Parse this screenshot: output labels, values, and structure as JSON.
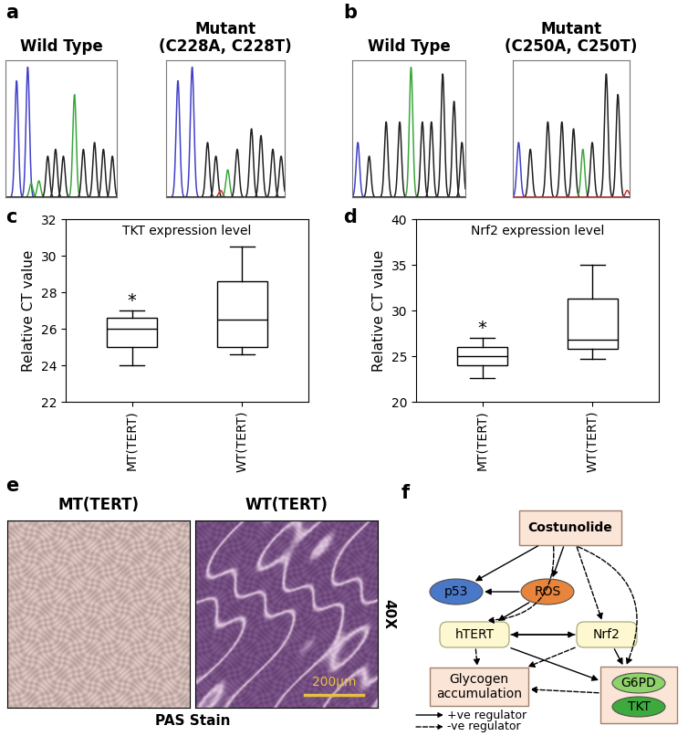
{
  "chart_data": [
    {
      "type": "box",
      "panel": "c",
      "title": "TKT expression level",
      "y_label": "Relative CT value",
      "categories": [
        "MT(TERT)",
        "WT(TERT)"
      ],
      "boxes": [
        {
          "whislo": 24,
          "q1": 25,
          "med": 26,
          "q3": 26.6,
          "whishi": 27
        },
        {
          "whislo": 24.6,
          "q1": 25,
          "med": 26.5,
          "q3": 28.6,
          "whishi": 30.5
        }
      ],
      "annotations": [
        {
          "category": 0,
          "text": "*"
        }
      ],
      "ylim": [
        22,
        32
      ],
      "yticks": [
        22,
        24,
        26,
        28,
        30,
        32
      ]
    },
    {
      "type": "box",
      "panel": "d",
      "title": "Nrf2 expression level",
      "y_label": "Relative CT value",
      "categories": [
        "MT(TERT)",
        "WT(TERT)"
      ],
      "boxes": [
        {
          "whislo": 22.6,
          "q1": 24,
          "med": 25,
          "q3": 26,
          "whishi": 27
        },
        {
          "whislo": 24.7,
          "q1": 25.8,
          "med": 26.8,
          "q3": 31.3,
          "whishi": 35
        }
      ],
      "annotations": [
        {
          "category": 0,
          "text": "*"
        }
      ],
      "ylim": [
        20,
        40
      ],
      "yticks": [
        20,
        25,
        30,
        35,
        40
      ]
    }
  ],
  "chromatograms": [
    {
      "panel": "a",
      "xlim": [
        0,
        1
      ],
      "ylim": [
        0,
        1
      ],
      "traces": [
        {
          "title": "Wild Type",
          "peaks": {
            "x": [
              0.1,
              0.2,
              0.23,
              0.3,
              0.38,
              0.45,
              0.52,
              0.62,
              0.7,
              0.8,
              0.88,
              0.96
            ],
            "height": [
              0.85,
              0.95,
              0.1,
              0.12,
              0.3,
              0.35,
              0.3,
              0.75,
              0.35,
              0.4,
              0.35,
              0.3
            ],
            "colors": [
              "#4040c8",
              "#4040c8",
              "#3aa63a",
              "#3aa63a",
              "#202020",
              "#202020",
              "#202020",
              "#3aa63a",
              "#202020",
              "#202020",
              "#202020",
              "#202020"
            ]
          }
        },
        {
          "title": "Mutant\n(C228A, C228T)",
          "peaks": {
            "x": [
              0.1,
              0.22,
              0.35,
              0.42,
              0.46,
              0.52,
              0.6,
              0.72,
              0.8,
              0.9,
              0.97
            ],
            "height": [
              0.85,
              0.95,
              0.4,
              0.3,
              0.05,
              0.2,
              0.35,
              0.5,
              0.45,
              0.35,
              0.3
            ],
            "colors": [
              "#4040c8",
              "#4040c8",
              "#202020",
              "#202020",
              "#d03030",
              "#3aa63a",
              "#202020",
              "#202020",
              "#202020",
              "#202020",
              "#202020"
            ]
          }
        }
      ]
    },
    {
      "panel": "b",
      "xlim": [
        0,
        1
      ],
      "ylim": [
        0,
        1
      ],
      "traces": [
        {
          "title": "Wild Type",
          "peaks": {
            "x": [
              0.05,
              0.15,
              0.3,
              0.42,
              0.52,
              0.62,
              0.7,
              0.8,
              0.9,
              0.97
            ],
            "height": [
              0.4,
              0.3,
              0.55,
              0.55,
              0.95,
              0.55,
              0.55,
              0.9,
              0.7,
              0.4
            ],
            "colors": [
              "#4040c8",
              "#202020",
              "#202020",
              "#202020",
              "#3aa63a",
              "#202020",
              "#202020",
              "#202020",
              "#202020",
              "#202020"
            ]
          }
        },
        {
          "title": "Mutant\n(C250A, C250T)",
          "peaks": {
            "x": [
              0.05,
              0.15,
              0.3,
              0.42,
              0.52,
              0.6,
              0.68,
              0.8,
              0.9,
              0.98
            ],
            "height": [
              0.4,
              0.35,
              0.55,
              0.55,
              0.5,
              0.35,
              0.4,
              0.9,
              0.75,
              0.05
            ],
            "colors": [
              "#4040c8",
              "#202020",
              "#202020",
              "#202020",
              "#202020",
              "#3aa63a",
              "#202020",
              "#202020",
              "#202020",
              "#d03030"
            ]
          }
        }
      ]
    }
  ],
  "micrographs": {
    "panel": "e",
    "images": [
      {
        "title": "MT(TERT)"
      },
      {
        "title": "WT(TERT)"
      }
    ],
    "magnification": "40X",
    "stain": "PAS Stain",
    "scale_bar": "200μm",
    "scale_bar_color": "#e8c040"
  },
  "diagram": {
    "panel": "f",
    "nodes": [
      {
        "label": "Costunolide",
        "color": "#fbe5d6"
      },
      {
        "label": "p53",
        "color": "#4a78c8"
      },
      {
        "label": "ROS",
        "color": "#e8843c"
      },
      {
        "label": "hTERT",
        "color": "#fdf8d0"
      },
      {
        "label": "Nrf2",
        "color": "#fdf8d0"
      },
      {
        "label": "Glycogen\naccumulation",
        "color": "#fbe5d6"
      },
      {
        "label": "G6PD",
        "color": "#8fd16a"
      },
      {
        "label": "TKT",
        "color": "#3daa3d"
      }
    ],
    "group_color": "#fbe5d6",
    "edges": [
      {
        "from": 0,
        "to": 1,
        "key": 0
      },
      {
        "from": 0,
        "to": 2,
        "key": 0
      },
      {
        "from": 0,
        "to": 3,
        "key": 1
      },
      {
        "from": 0,
        "to": 4,
        "key": 1
      },
      {
        "from": 0,
        "to": 6,
        "key": 1
      },
      {
        "from": 2,
        "to": 1,
        "key": 0
      },
      {
        "from": 2,
        "to": 3,
        "key": 0
      },
      {
        "from": 3,
        "to": 4,
        "key": 0
      },
      {
        "from": 4,
        "to": 3,
        "key": 0
      },
      {
        "from": 3,
        "to": 5,
        "key": 1
      },
      {
        "from": 4,
        "to": 5,
        "key": 1
      },
      {
        "from": 3,
        "to": 6,
        "key": 0
      },
      {
        "from": 4,
        "to": 6,
        "key": 0
      },
      {
        "from": 6,
        "to": 5,
        "key": 1
      }
    ],
    "line_key": [
      {
        "label": "+ve regulator",
        "line_style": "solid"
      },
      {
        "label": "-ve regulator",
        "line_style": "dashed"
      }
    ]
  }
}
